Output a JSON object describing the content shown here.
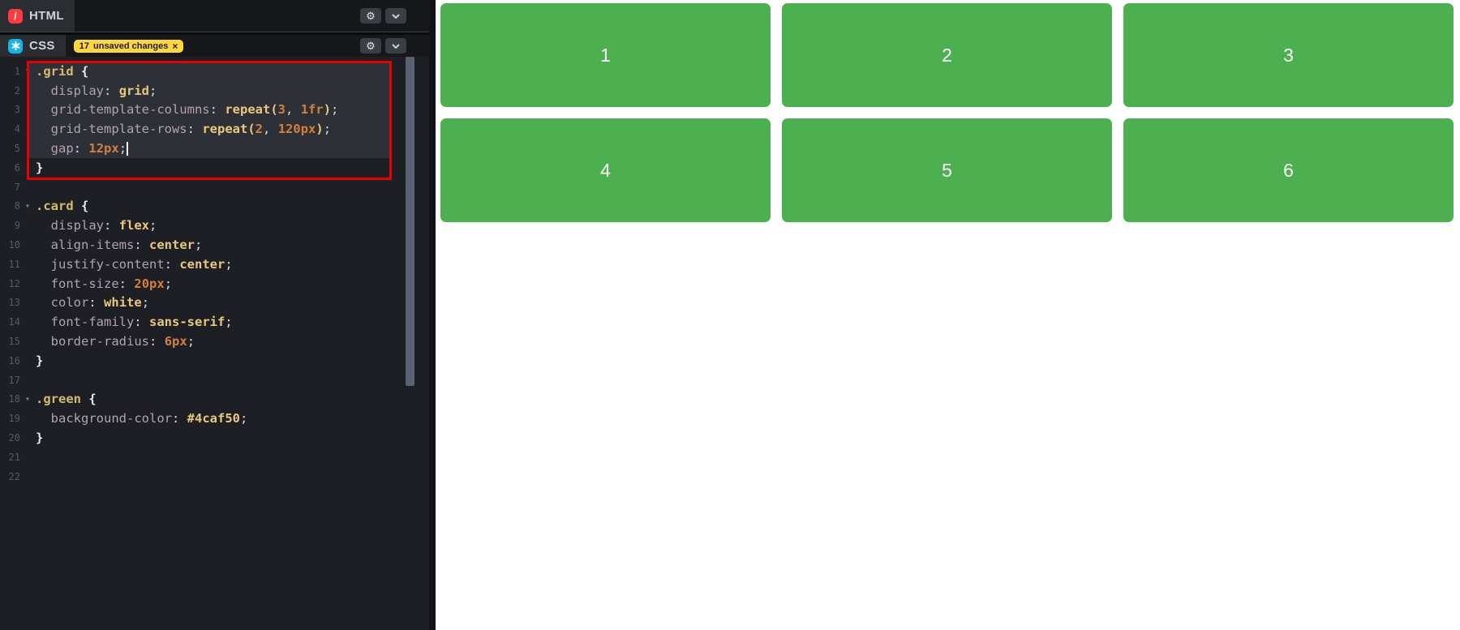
{
  "colors": {
    "html_icon_red": "#ff3b41",
    "css_icon_blue": "#15b3e8",
    "badge_yellow": "#ffd640",
    "annotation_red": "#e60000",
    "card_green": "#4caf50"
  },
  "html_panel": {
    "label": "HTML",
    "logo_glyph": "/",
    "settings_glyph": "⚙"
  },
  "css_panel": {
    "label": "CSS",
    "settings_glyph": "⚙",
    "badge": {
      "count": "17",
      "text": "unsaved changes",
      "close_glyph": "×"
    }
  },
  "editor": {
    "fold_glyph": "▾",
    "cursor_line": 5,
    "highlighted_lines": "1-5",
    "annotated_lines": "1-6",
    "lines": [
      {
        "no": "1",
        "fold": true,
        "tokens": [
          [
            ".grid",
            "sel"
          ],
          [
            " ",
            "pl"
          ],
          [
            "{",
            "br"
          ]
        ]
      },
      {
        "no": "2",
        "tokens": [
          [
            "  ",
            "pl"
          ],
          [
            "display",
            "pr"
          ],
          [
            ":",
            "pu"
          ],
          [
            " ",
            "pl"
          ],
          [
            "grid",
            "val"
          ],
          [
            ";",
            "pu"
          ]
        ]
      },
      {
        "no": "3",
        "tokens": [
          [
            "  ",
            "pl"
          ],
          [
            "grid-template-columns",
            "pr"
          ],
          [
            ":",
            "pu"
          ],
          [
            " ",
            "pl"
          ],
          [
            "repeat(",
            "val"
          ],
          [
            "3",
            "num"
          ],
          [
            ",",
            "pu"
          ],
          [
            " ",
            "pl"
          ],
          [
            "1fr",
            "num"
          ],
          [
            ")",
            "val"
          ],
          [
            ";",
            "pu"
          ]
        ]
      },
      {
        "no": "4",
        "tokens": [
          [
            "  ",
            "pl"
          ],
          [
            "grid-template-rows",
            "pr"
          ],
          [
            ":",
            "pu"
          ],
          [
            " ",
            "pl"
          ],
          [
            "repeat(",
            "val"
          ],
          [
            "2",
            "num"
          ],
          [
            ",",
            "pu"
          ],
          [
            " ",
            "pl"
          ],
          [
            "120px",
            "num"
          ],
          [
            ")",
            "val"
          ],
          [
            ";",
            "pu"
          ]
        ]
      },
      {
        "no": "5",
        "cursor": true,
        "tokens": [
          [
            "  ",
            "pl"
          ],
          [
            "gap",
            "pr"
          ],
          [
            ":",
            "pu"
          ],
          [
            " ",
            "pl"
          ],
          [
            "12px",
            "num"
          ],
          [
            ";",
            "pu"
          ]
        ]
      },
      {
        "no": "6",
        "tokens": [
          [
            "}",
            "br"
          ]
        ]
      },
      {
        "no": "7",
        "tokens": []
      },
      {
        "no": "8",
        "fold": true,
        "tokens": [
          [
            ".card",
            "sel"
          ],
          [
            " ",
            "pl"
          ],
          [
            "{",
            "br"
          ]
        ]
      },
      {
        "no": "9",
        "tokens": [
          [
            "  ",
            "pl"
          ],
          [
            "display",
            "pr"
          ],
          [
            ":",
            "pu"
          ],
          [
            " ",
            "pl"
          ],
          [
            "flex",
            "val"
          ],
          [
            ";",
            "pu"
          ]
        ]
      },
      {
        "no": "10",
        "tokens": [
          [
            "  ",
            "pl"
          ],
          [
            "align-items",
            "pr"
          ],
          [
            ":",
            "pu"
          ],
          [
            " ",
            "pl"
          ],
          [
            "center",
            "val"
          ],
          [
            ";",
            "pu"
          ]
        ]
      },
      {
        "no": "11",
        "tokens": [
          [
            "  ",
            "pl"
          ],
          [
            "justify-content",
            "pr"
          ],
          [
            ":",
            "pu"
          ],
          [
            " ",
            "pl"
          ],
          [
            "center",
            "val"
          ],
          [
            ";",
            "pu"
          ]
        ]
      },
      {
        "no": "12",
        "tokens": [
          [
            "  ",
            "pl"
          ],
          [
            "font-size",
            "pr"
          ],
          [
            ":",
            "pu"
          ],
          [
            " ",
            "pl"
          ],
          [
            "20px",
            "num"
          ],
          [
            ";",
            "pu"
          ]
        ]
      },
      {
        "no": "13",
        "tokens": [
          [
            "  ",
            "pl"
          ],
          [
            "color",
            "pr"
          ],
          [
            ":",
            "pu"
          ],
          [
            " ",
            "pl"
          ],
          [
            "white",
            "val"
          ],
          [
            ";",
            "pu"
          ]
        ]
      },
      {
        "no": "14",
        "tokens": [
          [
            "  ",
            "pl"
          ],
          [
            "font-family",
            "pr"
          ],
          [
            ":",
            "pu"
          ],
          [
            " ",
            "pl"
          ],
          [
            "sans-serif",
            "val"
          ],
          [
            ";",
            "pu"
          ]
        ]
      },
      {
        "no": "15",
        "tokens": [
          [
            "  ",
            "pl"
          ],
          [
            "border-radius",
            "pr"
          ],
          [
            ":",
            "pu"
          ],
          [
            " ",
            "pl"
          ],
          [
            "6px",
            "num"
          ],
          [
            ";",
            "pu"
          ]
        ]
      },
      {
        "no": "16",
        "tokens": [
          [
            "}",
            "br"
          ]
        ]
      },
      {
        "no": "17",
        "tokens": []
      },
      {
        "no": "18",
        "fold": true,
        "tokens": [
          [
            ".green",
            "sel"
          ],
          [
            " ",
            "pl"
          ],
          [
            "{",
            "br"
          ]
        ]
      },
      {
        "no": "19",
        "tokens": [
          [
            "  ",
            "pl"
          ],
          [
            "background-color",
            "pr"
          ],
          [
            ":",
            "pu"
          ],
          [
            " ",
            "pl"
          ],
          [
            "#4caf50",
            "val"
          ],
          [
            ";",
            "pu"
          ]
        ]
      },
      {
        "no": "20",
        "tokens": [
          [
            "}",
            "br"
          ]
        ]
      },
      {
        "no": "21",
        "tokens": []
      },
      {
        "no": "22",
        "tokens": []
      }
    ]
  },
  "preview": {
    "cards": [
      "1",
      "2",
      "3",
      "4",
      "5",
      "6"
    ]
  }
}
